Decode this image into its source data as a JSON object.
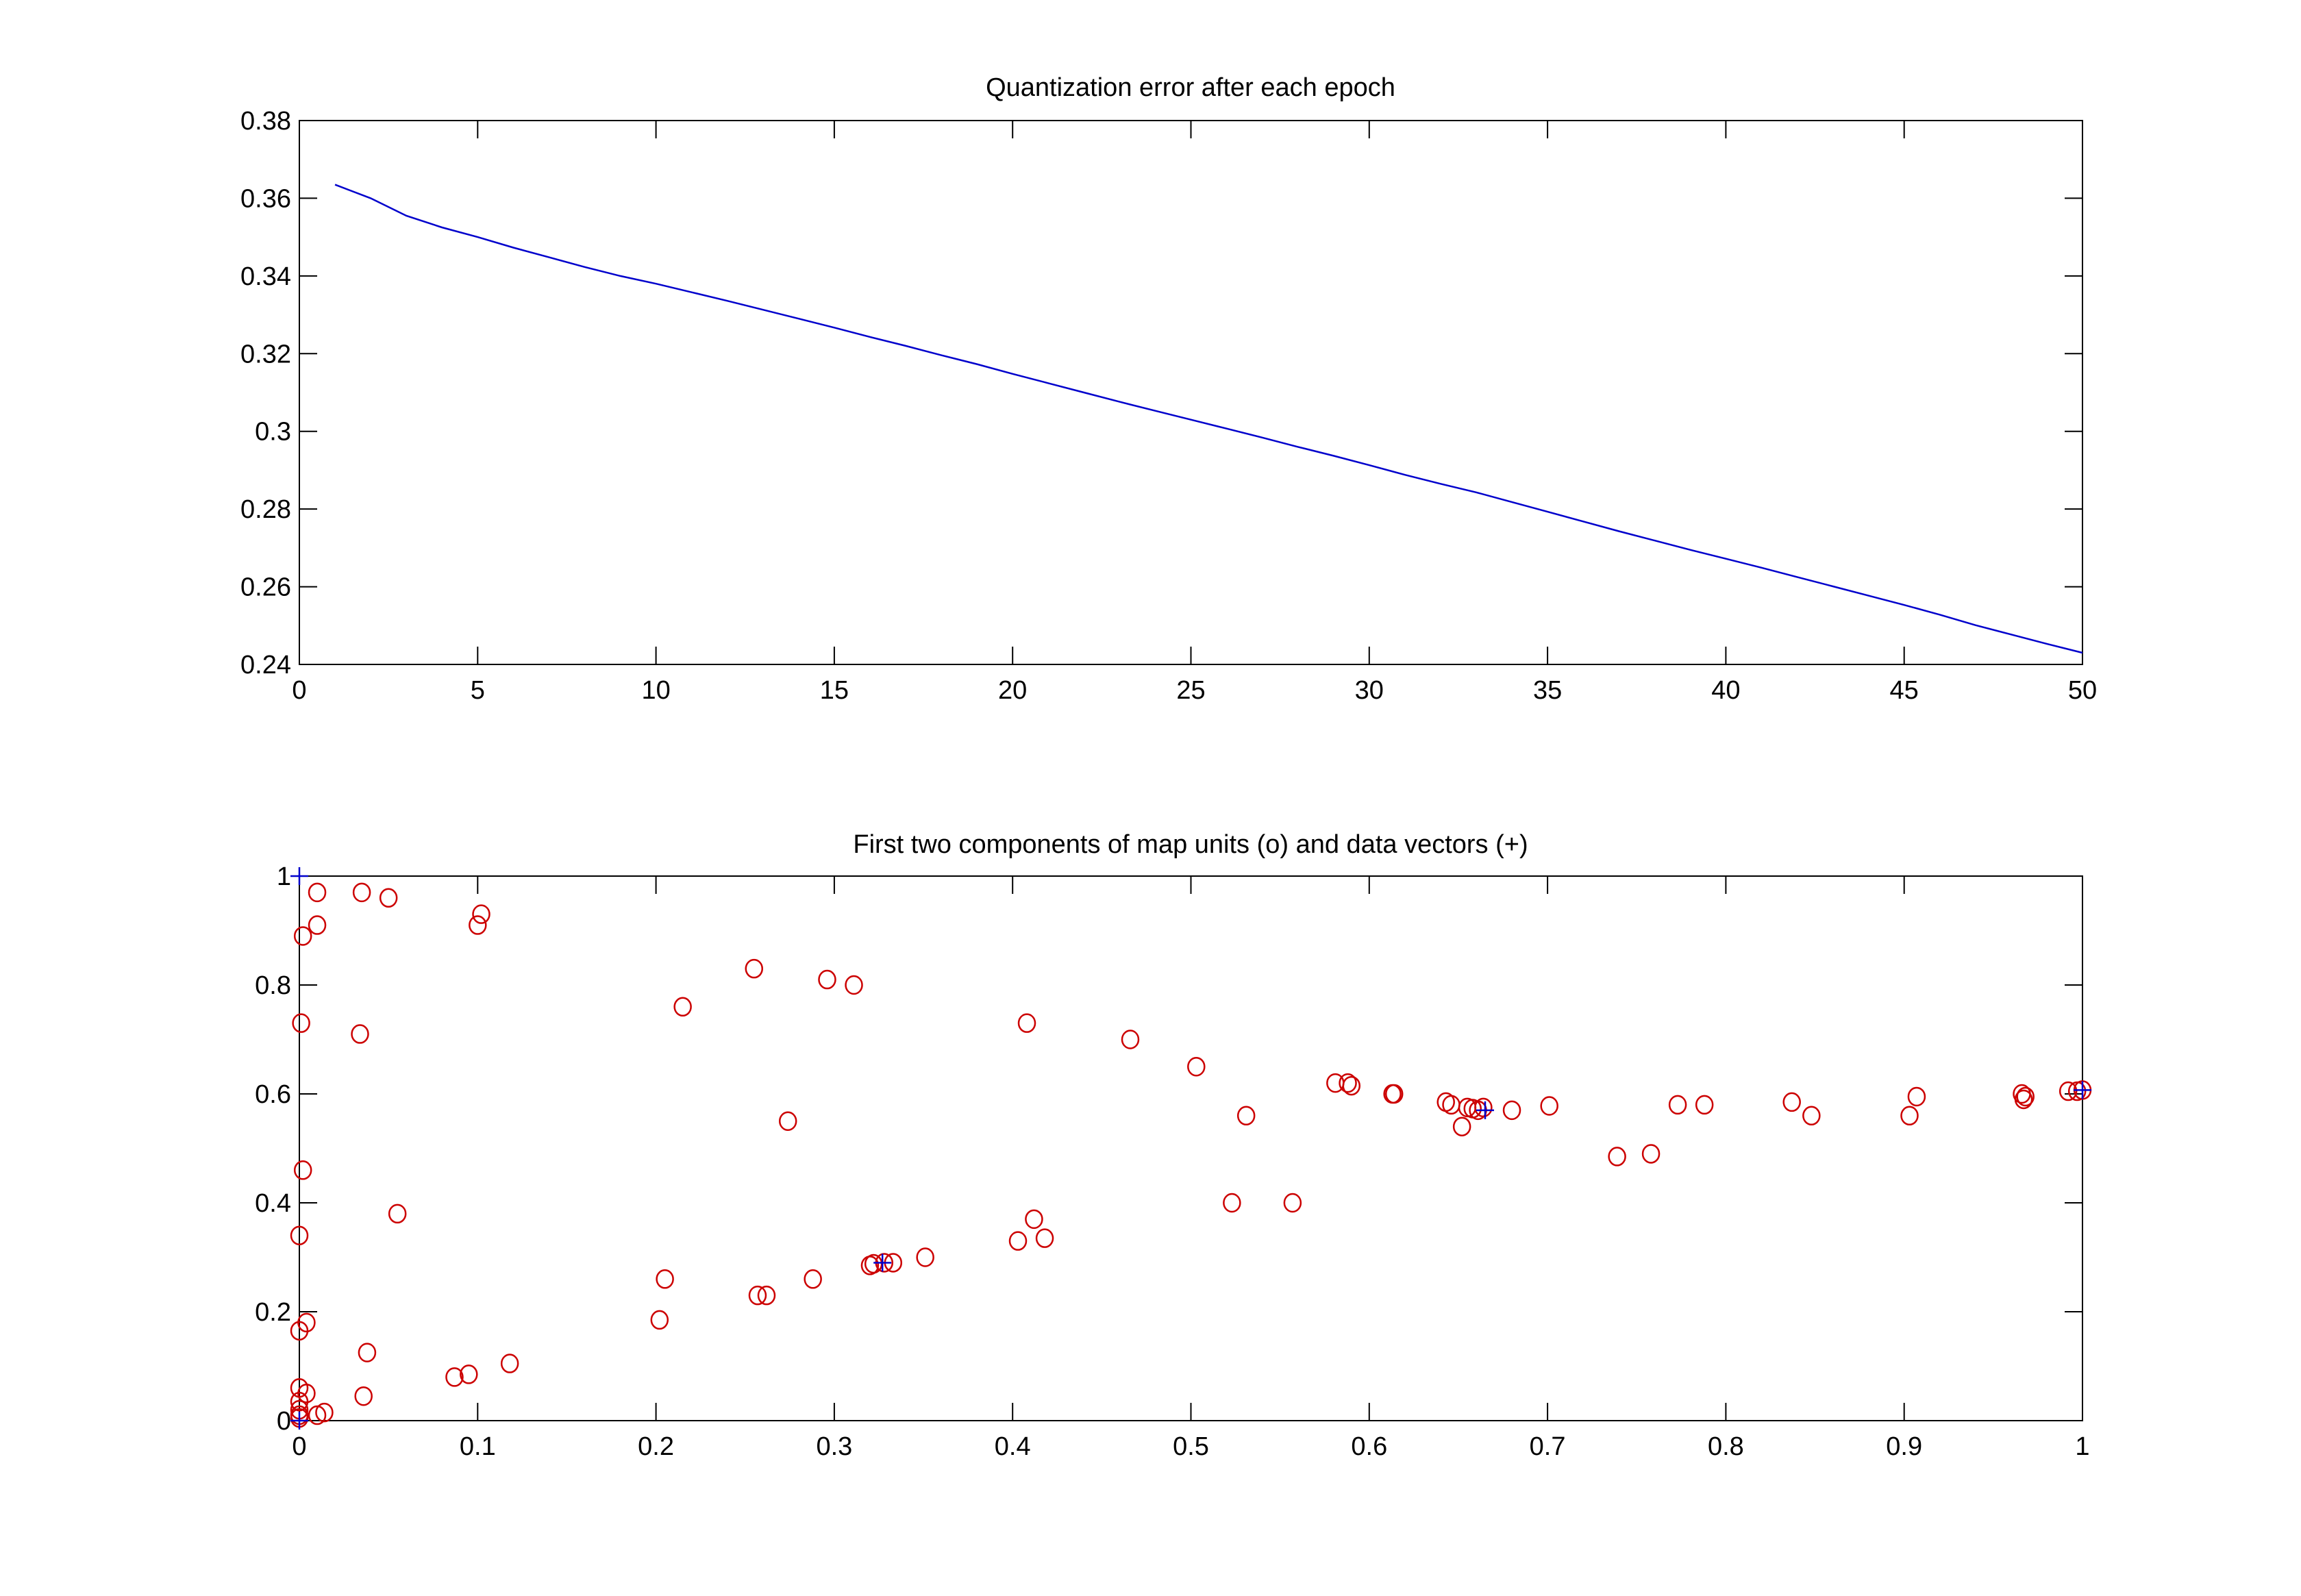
{
  "chart_data": [
    {
      "type": "line",
      "title": "Quantization error after each epoch",
      "xlabel": "",
      "ylabel": "",
      "xlim": [
        0,
        50
      ],
      "ylim": [
        0.24,
        0.38
      ],
      "grid": false,
      "xticks": [
        "0",
        "5",
        "10",
        "15",
        "20",
        "25",
        "30",
        "35",
        "40",
        "45",
        "50"
      ],
      "yticks": [
        "0.24",
        "0.26",
        "0.28",
        "0.3",
        "0.32",
        "0.34",
        "0.36",
        "0.38"
      ],
      "line_color": "#0000cc",
      "series": [
        {
          "name": "quantization error",
          "x": [
            1,
            2,
            3,
            4,
            5,
            6,
            7,
            8,
            9,
            10,
            11,
            12,
            13,
            14,
            15,
            16,
            17,
            18,
            19,
            20,
            21,
            22,
            23,
            24,
            25,
            26,
            27,
            28,
            29,
            30,
            31,
            32,
            33,
            34,
            35,
            36,
            37,
            38,
            39,
            40,
            41,
            42,
            43,
            44,
            45,
            46,
            47,
            48,
            49,
            50
          ],
          "values": [
            0.3635,
            0.36,
            0.3555,
            0.3525,
            0.35,
            0.3473,
            0.3448,
            0.3423,
            0.34,
            0.338,
            0.3358,
            0.3336,
            0.3313,
            0.329,
            0.3267,
            0.3243,
            0.322,
            0.3196,
            0.3173,
            0.3148,
            0.3124,
            0.31,
            0.3076,
            0.3053,
            0.303,
            0.3007,
            0.2984,
            0.296,
            0.2937,
            0.2913,
            0.2888,
            0.2865,
            0.2843,
            0.2818,
            0.2793,
            0.2768,
            0.2743,
            0.2719,
            0.2695,
            0.2672,
            0.2649,
            0.2625,
            0.2601,
            0.2577,
            0.2553,
            0.2528,
            0.2501,
            0.2477,
            0.2453,
            0.243
          ]
        }
      ]
    },
    {
      "type": "scatter",
      "title": "First two components of map units (o) and data vectors (+)",
      "xlabel": "",
      "ylabel": "",
      "xlim": [
        0,
        1
      ],
      "ylim": [
        0,
        1
      ],
      "grid": false,
      "xticks": [
        "0",
        "0.1",
        "0.2",
        "0.3",
        "0.4",
        "0.5",
        "0.6",
        "0.7",
        "0.8",
        "0.9",
        "1"
      ],
      "yticks": [
        "0",
        "0.2",
        "0.4",
        "0.6",
        "0.8",
        "1"
      ],
      "series": [
        {
          "name": "map units (o)",
          "marker": "o",
          "color": "#cc0000",
          "points": [
            [
              0.01,
              0.97
            ],
            [
              0.035,
              0.97
            ],
            [
              0.05,
              0.96
            ],
            [
              0.01,
              0.91
            ],
            [
              0.002,
              0.89
            ],
            [
              0.1,
              0.91
            ],
            [
              0.102,
              0.93
            ],
            [
              0.001,
              0.73
            ],
            [
              0.034,
              0.71
            ],
            [
              0.215,
              0.76
            ],
            [
              0.255,
              0.83
            ],
            [
              0.296,
              0.81
            ],
            [
              0.311,
              0.8
            ],
            [
              0.274,
              0.55
            ],
            [
              0.002,
              0.46
            ],
            [
              0.055,
              0.38
            ],
            [
              0.0,
              0.34
            ],
            [
              0.205,
              0.26
            ],
            [
              0.202,
              0.185
            ],
            [
              0.257,
              0.23
            ],
            [
              0.262,
              0.23
            ],
            [
              0.288,
              0.26
            ],
            [
              0.32,
              0.285
            ],
            [
              0.322,
              0.288
            ],
            [
              0.328,
              0.29
            ],
            [
              0.333,
              0.29
            ],
            [
              0.351,
              0.3
            ],
            [
              0.0,
              0.165
            ],
            [
              0.004,
              0.18
            ],
            [
              0.038,
              0.125
            ],
            [
              0.087,
              0.08
            ],
            [
              0.095,
              0.085
            ],
            [
              0.118,
              0.105
            ],
            [
              0.036,
              0.045
            ],
            [
              0.0,
              0.06
            ],
            [
              0.004,
              0.05
            ],
            [
              0.0,
              0.035
            ],
            [
              0.0,
              0.02
            ],
            [
              0.0,
              0.01
            ],
            [
              0.0,
              0.005
            ],
            [
              0.01,
              0.01
            ],
            [
              0.014,
              0.015
            ],
            [
              0.408,
              0.73
            ],
            [
              0.466,
              0.7
            ],
            [
              0.503,
              0.65
            ],
            [
              0.531,
              0.56
            ],
            [
              0.581,
              0.62
            ],
            [
              0.588,
              0.62
            ],
            [
              0.59,
              0.615
            ],
            [
              0.613,
              0.6
            ],
            [
              0.614,
              0.6
            ],
            [
              0.643,
              0.585
            ],
            [
              0.646,
              0.58
            ],
            [
              0.652,
              0.54
            ],
            [
              0.655,
              0.575
            ],
            [
              0.658,
              0.573
            ],
            [
              0.661,
              0.57
            ],
            [
              0.664,
              0.575
            ],
            [
              0.68,
              0.57
            ],
            [
              0.701,
              0.578
            ],
            [
              0.403,
              0.33
            ],
            [
              0.412,
              0.37
            ],
            [
              0.418,
              0.335
            ],
            [
              0.523,
              0.4
            ],
            [
              0.557,
              0.4
            ],
            [
              0.739,
              0.485
            ],
            [
              0.758,
              0.49
            ],
            [
              0.773,
              0.58
            ],
            [
              0.788,
              0.58
            ],
            [
              0.837,
              0.585
            ],
            [
              0.848,
              0.56
            ],
            [
              0.903,
              0.56
            ],
            [
              0.907,
              0.595
            ],
            [
              0.966,
              0.6
            ],
            [
              0.967,
              0.59
            ],
            [
              0.968,
              0.595
            ],
            [
              0.992,
              0.605
            ],
            [
              0.997,
              0.605
            ],
            [
              1.0,
              0.607
            ]
          ]
        },
        {
          "name": "data vectors (+)",
          "marker": "+",
          "color": "#0000cc",
          "points": [
            [
              0,
              1
            ],
            [
              0,
              0
            ],
            [
              0.327,
              0.29
            ],
            [
              0.665,
              0.57
            ],
            [
              1.0,
              0.607
            ]
          ]
        }
      ]
    }
  ]
}
